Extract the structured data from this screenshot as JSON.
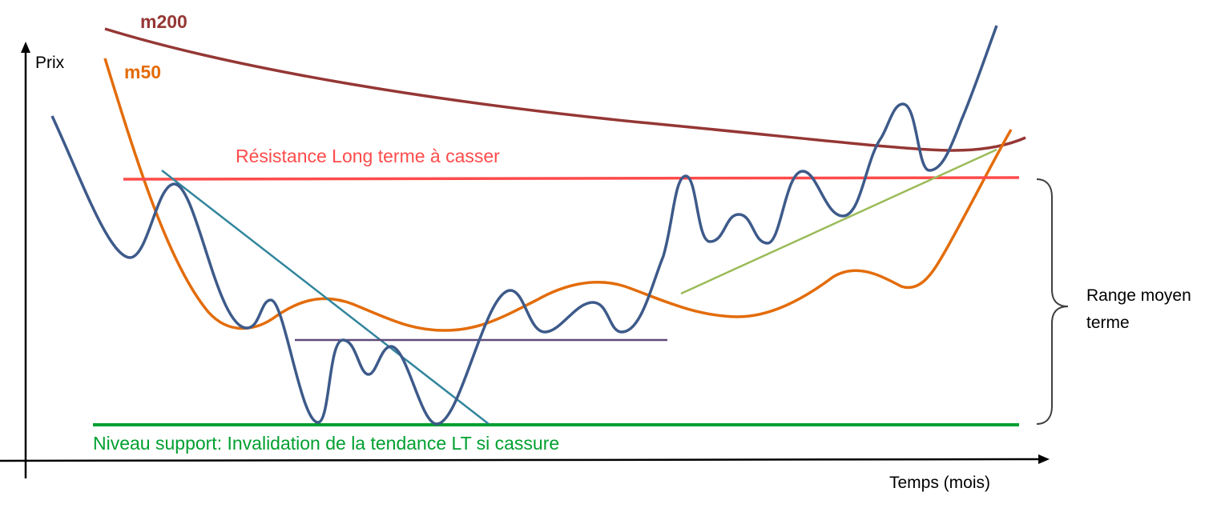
{
  "labels": {
    "y_axis": "Prix",
    "x_axis": "Temps (mois)",
    "m200": "m200",
    "m50": "m50",
    "resistance": "Résistance Long terme à casser",
    "support": "Niveau support: Invalidation de la tendance LT si cassure",
    "range_line1": "Range moyen",
    "range_line2": "terme"
  },
  "colors": {
    "axis": "#000000",
    "price": "#3d5a8a",
    "m50": "#e36c0a",
    "m200": "#953735",
    "resistance": "#ff4b4b",
    "support": "#00a030",
    "downtrend": "#31859c",
    "neckline": "#5f4b7a",
    "uptrend": "#9bbb59",
    "brace": "#404040"
  }
}
